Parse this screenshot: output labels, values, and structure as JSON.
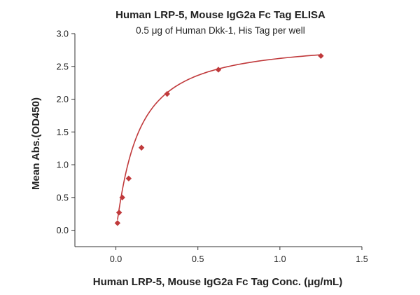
{
  "chart_data": {
    "type": "scatter",
    "title": "Human LRP-5, Mouse IgG2a Fc Tag ELISA",
    "subtitle": "0.5 μg of Human Dkk-1, His Tag per well",
    "xlabel": "Human LRP-5, Mouse IgG2a Fc Tag Conc. (μg/mL)",
    "ylabel": "Mean Abs.(OD450)",
    "xlim": [
      -0.25,
      1.5
    ],
    "ylim": [
      -0.25,
      3.0
    ],
    "x_ticks": [
      0.0,
      0.5,
      1.0,
      1.5
    ],
    "x_tick_labels": [
      "0.0",
      "0.5",
      "1.0",
      "1.5"
    ],
    "y_ticks": [
      0.0,
      0.5,
      1.0,
      1.5,
      2.0,
      2.5,
      3.0
    ],
    "y_tick_labels": [
      "0.0",
      "0.5",
      "1.0",
      "1.5",
      "2.0",
      "2.5",
      "3.0"
    ],
    "grid": false,
    "legend": "none",
    "marker": "diamond",
    "color": "#c0393b",
    "points": [
      {
        "x": 0.0098,
        "y": 0.11
      },
      {
        "x": 0.0195,
        "y": 0.27
      },
      {
        "x": 0.039,
        "y": 0.5
      },
      {
        "x": 0.078,
        "y": 0.79
      },
      {
        "x": 0.156,
        "y": 1.26
      },
      {
        "x": 0.3125,
        "y": 2.08
      },
      {
        "x": 0.625,
        "y": 2.45
      },
      {
        "x": 1.25,
        "y": 2.66
      }
    ],
    "fit_curve": {
      "type": "4PL",
      "bottom": 0.0,
      "top": 2.9,
      "ec50": 0.13,
      "hill": 1.1
    }
  }
}
